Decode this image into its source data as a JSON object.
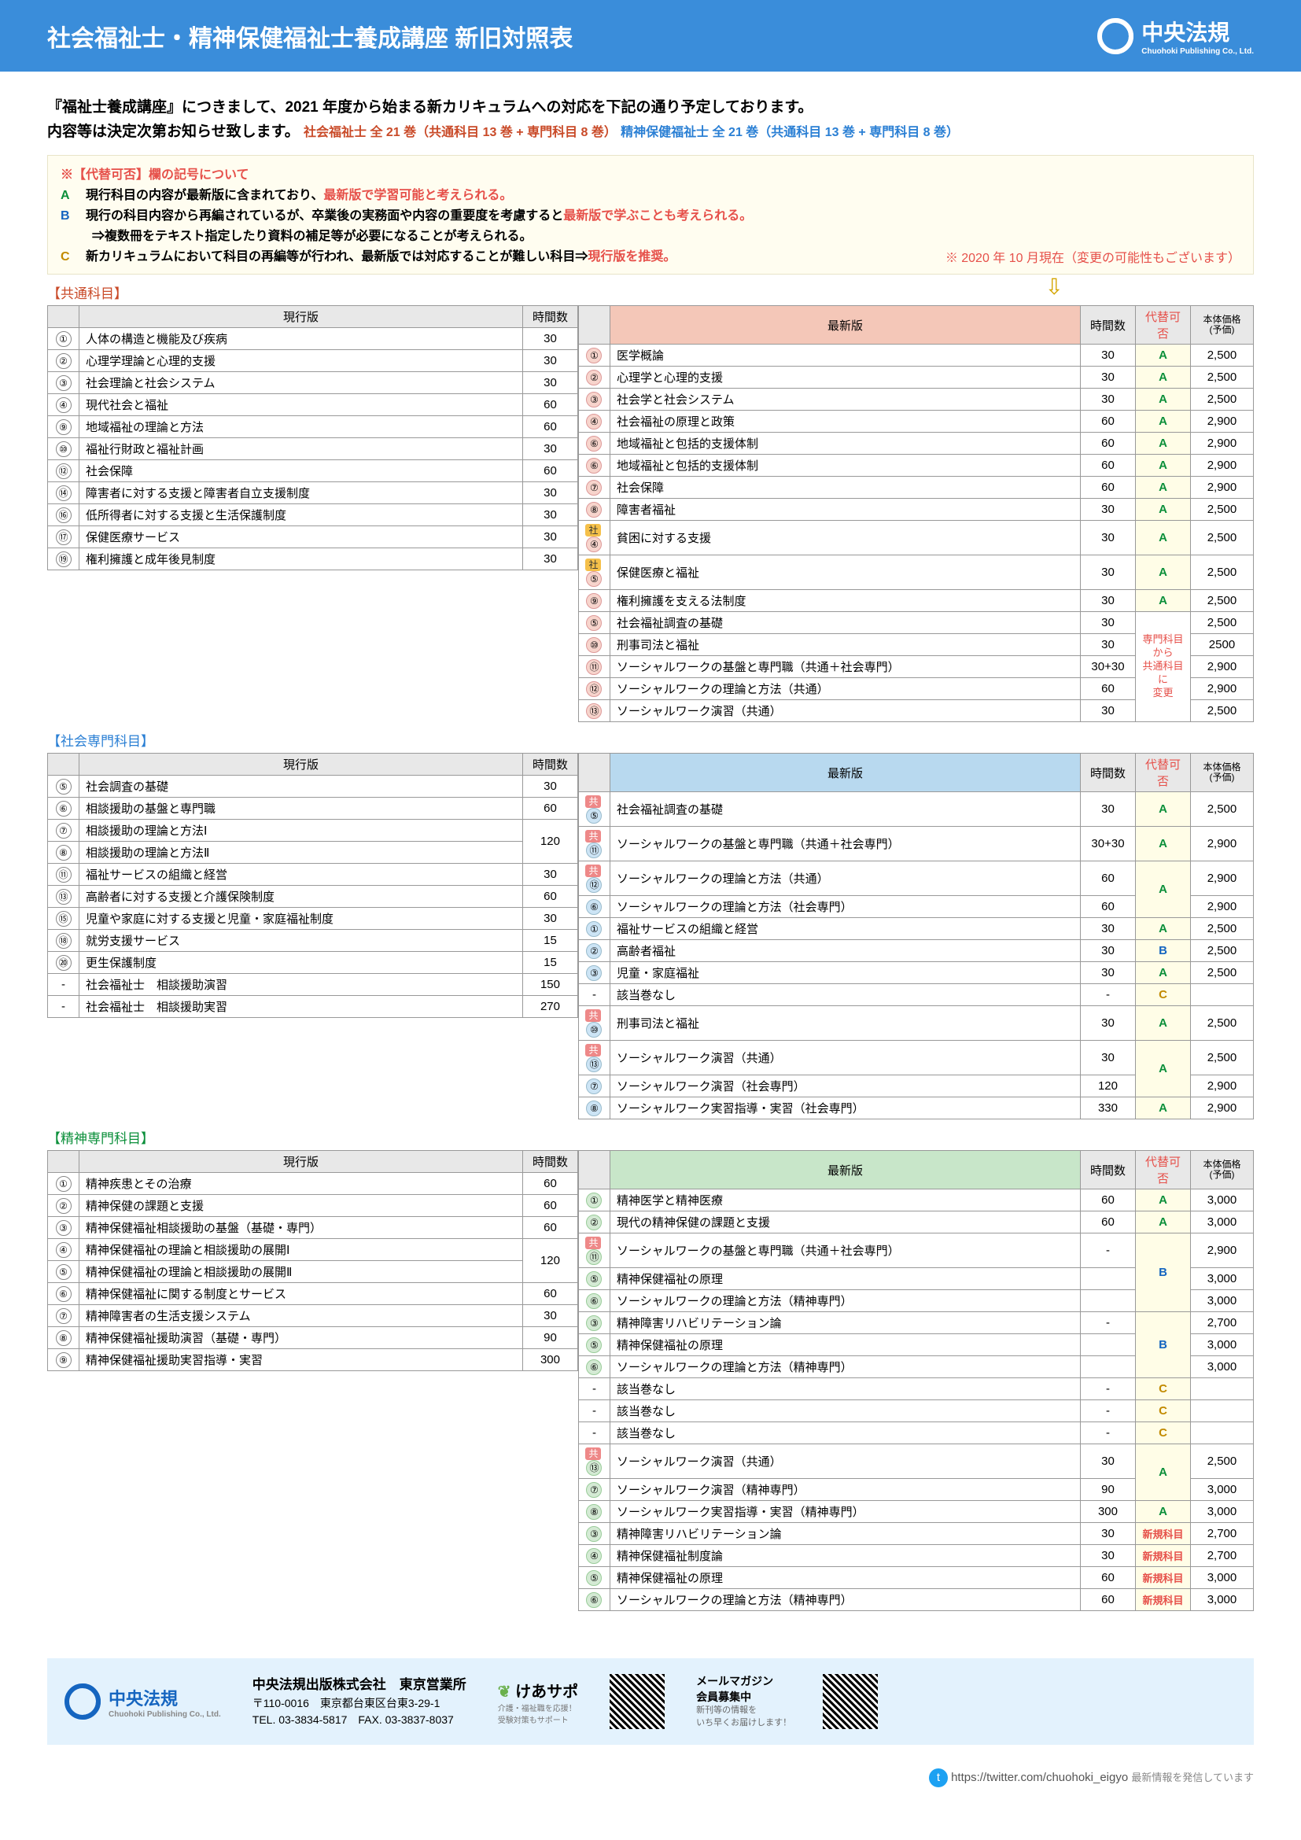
{
  "header": {
    "title": "社会福祉士・精神保健福祉士養成講座 新旧対照表",
    "logo_text": "中央法規",
    "logo_sub": "Chuohoki Publishing Co., Ltd."
  },
  "intro": {
    "line1": "『福祉士養成講座』につきまして、2021 年度から始まる新カリキュラムへの対応を下記の通り予定しております。",
    "line2a": "内容等は決定次第お知らせ致します。",
    "line2b": "社会福祉士 全 21 巻（共通科目 13 巻 + 専門科目 8 巻）",
    "line2c": "精神保健福祉士 全 21 巻（共通科目 13 巻 + 専門科目 8 巻）"
  },
  "legend": {
    "title": "※【代替可否】欄の記号について",
    "a": "A",
    "a_text": "現行科目の内容が最新版に含まれており、",
    "a_red": "最新版で学習可能と考えられる。",
    "b": "B",
    "b_text": "現行の科目内容から再編されているが、卒業後の実務面や内容の重要度を考慮すると",
    "b_red": "最新版で学ぶことも考えられる。",
    "b_sub": "⇒複数冊をテキスト指定したり資料の補足等が必要になることが考えられる。",
    "c": "C",
    "c_text": "新カリキュラムにおいて科目の再編等が行われ、最新版では対応することが難しい科目⇒",
    "c_red": "現行版を推奨。",
    "note": "※ 2020 年 10 月現在（変更の可能性もございます）"
  },
  "headers": {
    "current": "現行版",
    "hours": "時間数",
    "new": "最新版",
    "sub": "代替可否",
    "price": "本体価格\n(予価)"
  },
  "sections": {
    "common": "【共通科目】",
    "social": "【社会専門科目】",
    "mental": "【精神専門科目】"
  },
  "merge_note": "専門科目\nから\n共通科目\nに\n変更",
  "common_left": [
    {
      "n": "①",
      "t": "人体の構造と機能及び疾病",
      "h": "30"
    },
    {
      "n": "②",
      "t": "心理学理論と心理的支援",
      "h": "30"
    },
    {
      "n": "③",
      "t": "社会理論と社会システム",
      "h": "30"
    },
    {
      "n": "④",
      "t": "現代社会と福祉",
      "h": "60"
    },
    {
      "n": "⑨",
      "t": "地域福祉の理論と方法",
      "h": "60"
    },
    {
      "n": "⑩",
      "t": "福祉行財政と福祉計画",
      "h": "30"
    },
    {
      "n": "⑫",
      "t": "社会保障",
      "h": "60"
    },
    {
      "n": "⑭",
      "t": "障害者に対する支援と障害者自立支援制度",
      "h": "30"
    },
    {
      "n": "⑯",
      "t": "低所得者に対する支援と生活保護制度",
      "h": "30"
    },
    {
      "n": "⑰",
      "t": "保健医療サービス",
      "h": "30"
    },
    {
      "n": "⑲",
      "t": "権利擁護と成年後見制度",
      "h": "30"
    }
  ],
  "common_right": [
    {
      "n": "①",
      "t": "医学概論",
      "h": "30",
      "s": "A",
      "p": "2,500"
    },
    {
      "n": "②",
      "t": "心理学と心理的支援",
      "h": "30",
      "s": "A",
      "p": "2,500"
    },
    {
      "n": "③",
      "t": "社会学と社会システム",
      "h": "30",
      "s": "A",
      "p": "2,500"
    },
    {
      "n": "④",
      "t": "社会福祉の原理と政策",
      "h": "60",
      "s": "A",
      "p": "2,900"
    },
    {
      "n": "⑥",
      "t": "地域福祉と包括的支援体制",
      "h": "60",
      "s": "A",
      "p": "2,900"
    },
    {
      "n": "⑥",
      "t": "地域福祉と包括的支援体制",
      "h": "60",
      "s": "A",
      "p": "2,900"
    },
    {
      "n": "⑦",
      "t": "社会保障",
      "h": "60",
      "s": "A",
      "p": "2,900"
    },
    {
      "n": "⑧",
      "t": "障害者福祉",
      "h": "30",
      "s": "A",
      "p": "2,500"
    },
    {
      "n": "④",
      "t": "貧困に対する支援",
      "h": "30",
      "s": "A",
      "p": "2,500",
      "badge": "社"
    },
    {
      "n": "⑤",
      "t": "保健医療と福祉",
      "h": "30",
      "s": "A",
      "p": "2,500",
      "badge": "社"
    },
    {
      "n": "⑨",
      "t": "権利擁護を支える法制度",
      "h": "30",
      "s": "A",
      "p": "2,500"
    },
    {
      "n": "⑤",
      "t": "社会福祉調査の基礎",
      "h": "30",
      "s": "",
      "p": "2,500",
      "merge": true
    },
    {
      "n": "⑩",
      "t": "刑事司法と福祉",
      "h": "30",
      "s": "",
      "p": "2500"
    },
    {
      "n": "⑪",
      "t": "ソーシャルワークの基盤と専門職（共通＋社会専門）",
      "h": "30+30",
      "s": "",
      "p": "2,900"
    },
    {
      "n": "⑫",
      "t": "ソーシャルワークの理論と方法（共通）",
      "h": "60",
      "s": "",
      "p": "2,900"
    },
    {
      "n": "⑬",
      "t": "ソーシャルワーク演習（共通）",
      "h": "30",
      "s": "",
      "p": "2,500"
    }
  ],
  "social_left": [
    {
      "n": "⑤",
      "t": "社会調査の基礎",
      "h": "30"
    },
    {
      "n": "⑥",
      "t": "相談援助の基盤と専門職",
      "h": "60"
    },
    {
      "n": "⑦",
      "t": "相談援助の理論と方法Ⅰ",
      "h": "",
      "rowspan": 2,
      "hval": "120"
    },
    {
      "n": "⑧",
      "t": "相談援助の理論と方法Ⅱ",
      "h": ""
    },
    {
      "n": "⑪",
      "t": "福祉サービスの組織と経営",
      "h": "30"
    },
    {
      "n": "⑬",
      "t": "高齢者に対する支援と介護保険制度",
      "h": "60"
    },
    {
      "n": "⑮",
      "t": "児童や家庭に対する支援と児童・家庭福祉制度",
      "h": "30"
    },
    {
      "n": "⑱",
      "t": "就労支援サービス",
      "h": "15"
    },
    {
      "n": "⑳",
      "t": "更生保護制度",
      "h": "15"
    },
    {
      "n": "-",
      "t": "社会福祉士　相談援助演習",
      "h": "150",
      "rowspan": 2
    },
    {
      "n": "-",
      "t": "社会福祉士　相談援助実習",
      "h": "270"
    }
  ],
  "social_right": [
    {
      "n": "⑤",
      "t": "社会福祉調査の基礎",
      "h": "30",
      "s": "A",
      "p": "2,500",
      "badge": "共"
    },
    {
      "n": "⑪",
      "t": "ソーシャルワークの基盤と専門職（共通＋社会専門）",
      "h": "30+30",
      "s": "A",
      "p": "2,900",
      "badge": "共"
    },
    {
      "n": "⑫",
      "t": "ソーシャルワークの理論と方法（共通）",
      "h": "60",
      "s": "A",
      "p": "2,900",
      "badge": "共",
      "srow": 2
    },
    {
      "n": "⑥",
      "t": "ソーシャルワークの理論と方法（社会専門）",
      "h": "60",
      "s": "",
      "p": "2,900"
    },
    {
      "n": "①",
      "t": "福祉サービスの組織と経営",
      "h": "30",
      "s": "A",
      "p": "2,500"
    },
    {
      "n": "②",
      "t": "高齢者福祉",
      "h": "30",
      "s": "B",
      "p": "2,500"
    },
    {
      "n": "③",
      "t": "児童・家庭福祉",
      "h": "30",
      "s": "A",
      "p": "2,500"
    },
    {
      "n": "-",
      "t": "該当巻なし",
      "h": "-",
      "s": "C",
      "p": ""
    },
    {
      "n": "⑩",
      "t": "刑事司法と福祉",
      "h": "30",
      "s": "A",
      "p": "2,500",
      "badge": "共"
    },
    {
      "n": "⑬",
      "t": "ソーシャルワーク演習（共通）",
      "h": "30",
      "s": "A",
      "p": "2,500",
      "badge": "共",
      "srow": 2
    },
    {
      "n": "⑦",
      "t": "ソーシャルワーク演習（社会専門）",
      "h": "120",
      "s": "",
      "p": "2,900"
    },
    {
      "n": "⑧",
      "t": "ソーシャルワーク実習指導・実習（社会専門）",
      "h": "330",
      "s": "A",
      "p": "2,900"
    }
  ],
  "mental_left": [
    {
      "n": "①",
      "t": "精神疾患とその治療",
      "h": "60"
    },
    {
      "n": "②",
      "t": "精神保健の課題と支援",
      "h": "60"
    },
    {
      "n": "③",
      "t": "精神保健福祉相談援助の基盤（基礎・専門）",
      "h": "60",
      "rowspan": 3
    },
    {
      "n": "④",
      "t": "精神保健福祉の理論と相談援助の展開Ⅰ",
      "h": "120",
      "rowspan": 3,
      "hrow": 2
    },
    {
      "n": "⑤",
      "t": "精神保健福祉の理論と相談援助の展開Ⅱ",
      "h": ""
    },
    {
      "n": "⑥",
      "t": "精神保健福祉に関する制度とサービス",
      "h": "60"
    },
    {
      "n": "⑦",
      "t": "精神障害者の生活支援システム",
      "h": "30"
    },
    {
      "n": "⑧",
      "t": "精神保健福祉援助演習（基礎・専門）",
      "h": "90",
      "rowspan": 2
    },
    {
      "n": "⑨",
      "t": "精神保健福祉援助実習指導・実習",
      "h": "300"
    }
  ],
  "mental_right": [
    {
      "n": "①",
      "t": "精神医学と精神医療",
      "h": "60",
      "s": "A",
      "p": "3,000"
    },
    {
      "n": "②",
      "t": "現代の精神保健の課題と支援",
      "h": "60",
      "s": "A",
      "p": "3,000"
    },
    {
      "n": "⑪",
      "t": "ソーシャルワークの基盤と専門職（共通＋社会専門）",
      "h": "-",
      "s": "B",
      "p": "2,900",
      "badge": "共",
      "srow": 3
    },
    {
      "n": "⑤",
      "t": "精神保健福祉の原理",
      "h": "",
      "s": "",
      "p": "3,000"
    },
    {
      "n": "⑥",
      "t": "ソーシャルワークの理論と方法（精神専門）",
      "h": "",
      "s": "",
      "p": "3,000"
    },
    {
      "n": "③",
      "t": "精神障害リハビリテーション論",
      "h": "-",
      "s": "B",
      "p": "2,700",
      "srow": 3
    },
    {
      "n": "⑤",
      "t": "精神保健福祉の原理",
      "h": "",
      "s": "",
      "p": "3,000"
    },
    {
      "n": "⑥",
      "t": "ソーシャルワークの理論と方法（精神専門）",
      "h": "",
      "s": "",
      "p": "3,000"
    },
    {
      "n": "-",
      "t": "該当巻なし",
      "h": "-",
      "s": "C",
      "p": ""
    },
    {
      "n": "-",
      "t": "該当巻なし",
      "h": "-",
      "s": "C",
      "p": ""
    },
    {
      "n": "-",
      "t": "該当巻なし",
      "h": "-",
      "s": "C",
      "p": ""
    },
    {
      "n": "⑬",
      "t": "ソーシャルワーク演習（共通）",
      "h": "30",
      "s": "A",
      "p": "2,500",
      "badge": "共",
      "srow": 2
    },
    {
      "n": "⑦",
      "t": "ソーシャルワーク演習（精神専門）",
      "h": "90",
      "s": "",
      "p": "3,000"
    },
    {
      "n": "⑧",
      "t": "ソーシャルワーク実習指導・実習（精神専門）",
      "h": "300",
      "s": "A",
      "p": "3,000"
    },
    {
      "n": "③",
      "t": "精神障害リハビリテーション論",
      "h": "30",
      "s": "新規科目",
      "p": "2,700"
    },
    {
      "n": "④",
      "t": "精神保健福祉制度論",
      "h": "30",
      "s": "新規科目",
      "p": "2,700"
    },
    {
      "n": "⑤",
      "t": "精神保健福祉の原理",
      "h": "60",
      "s": "新規科目",
      "p": "3,000"
    },
    {
      "n": "⑥",
      "t": "ソーシャルワークの理論と方法（精神専門）",
      "h": "60",
      "s": "新規科目",
      "p": "3,000"
    }
  ],
  "footer": {
    "company": "中央法規出版株式会社　東京営業所",
    "addr": "〒110-0016　東京都台東区台東3-29-1",
    "tel": "TEL. 03-3834-5817　FAX. 03-3837-8037",
    "caresapo": "けあサポ",
    "caresapo_sub": "介護・福祉職を応援！\n受験対策もサポート",
    "mailmag": "メールマガジン\n会員募集中",
    "mailmag_sub": "新刊等の情報を\nいち早くお届けします！",
    "twitter": "https://twitter.com/chuohoki_eigyo",
    "twitter_note": "最新情報を発信しています"
  }
}
